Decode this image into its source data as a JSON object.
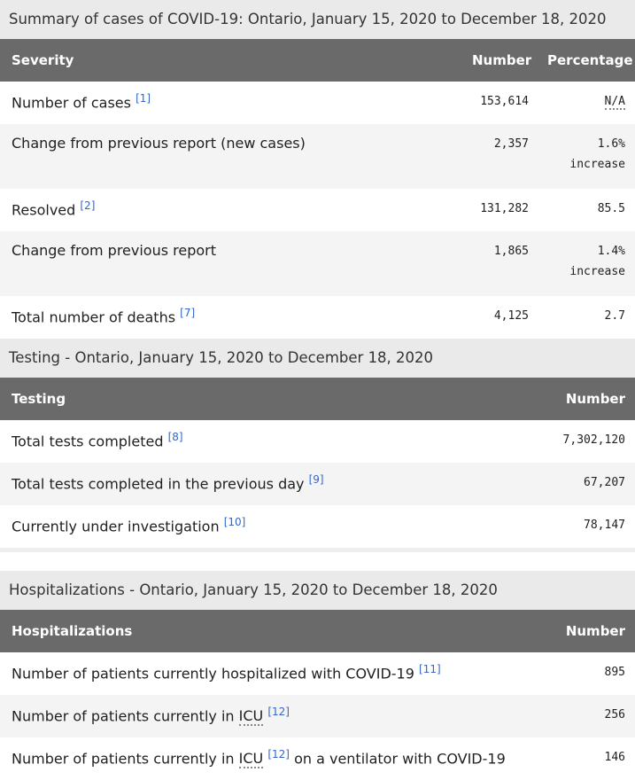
{
  "tables": [
    {
      "caption": "Summary of cases of COVID-19: Ontario, January 15, 2020 to December 18, 2020",
      "headers": [
        "Severity",
        "Number",
        "Percentage"
      ],
      "rows": [
        {
          "label": "Number of cases",
          "ref": "[1]",
          "number": "153,614",
          "percentage": "N/A"
        },
        {
          "label": "Change from previous report (new cases)",
          "number": "2,357",
          "percentage": "1.6%",
          "note": "increase"
        },
        {
          "label": "Resolved",
          "ref": "[2]",
          "number": "131,282",
          "percentage": "85.5"
        },
        {
          "label": "Change from previous report",
          "number": "1,865",
          "percentage": "1.4%",
          "note": "increase"
        },
        {
          "label": "Total number of deaths",
          "ref": "[7]",
          "number": "4,125",
          "percentage": "2.7"
        }
      ]
    },
    {
      "caption": "Testing - Ontario, January 15, 2020 to December 18, 2020",
      "headers": [
        "Testing",
        "Number"
      ],
      "rows": [
        {
          "label": "Total tests completed",
          "ref": "[8]",
          "number": "7,302,120"
        },
        {
          "label": "Total tests completed in the previous day",
          "ref": "[9]",
          "number": "67,207"
        },
        {
          "label": "Currently under investigation",
          "ref": "[10]",
          "number": "78,147"
        }
      ]
    },
    {
      "caption": "Hospitalizations - Ontario, January 15, 2020 to December 18, 2020",
      "headers": [
        "Hospitalizations",
        "Number"
      ],
      "rows": [
        {
          "label": "Number of patients currently hospitalized with COVID-19",
          "ref": "[11]",
          "number": "895"
        },
        {
          "label": "Number of patients currently in",
          "abbr": "ICU",
          "ref": "[12]",
          "number": "256"
        },
        {
          "label": "Number of patients currently in",
          "abbr": "ICU",
          "ref": "[12]",
          "label_end": "on a ventilator with COVID-19",
          "number": "146"
        }
      ]
    }
  ]
}
